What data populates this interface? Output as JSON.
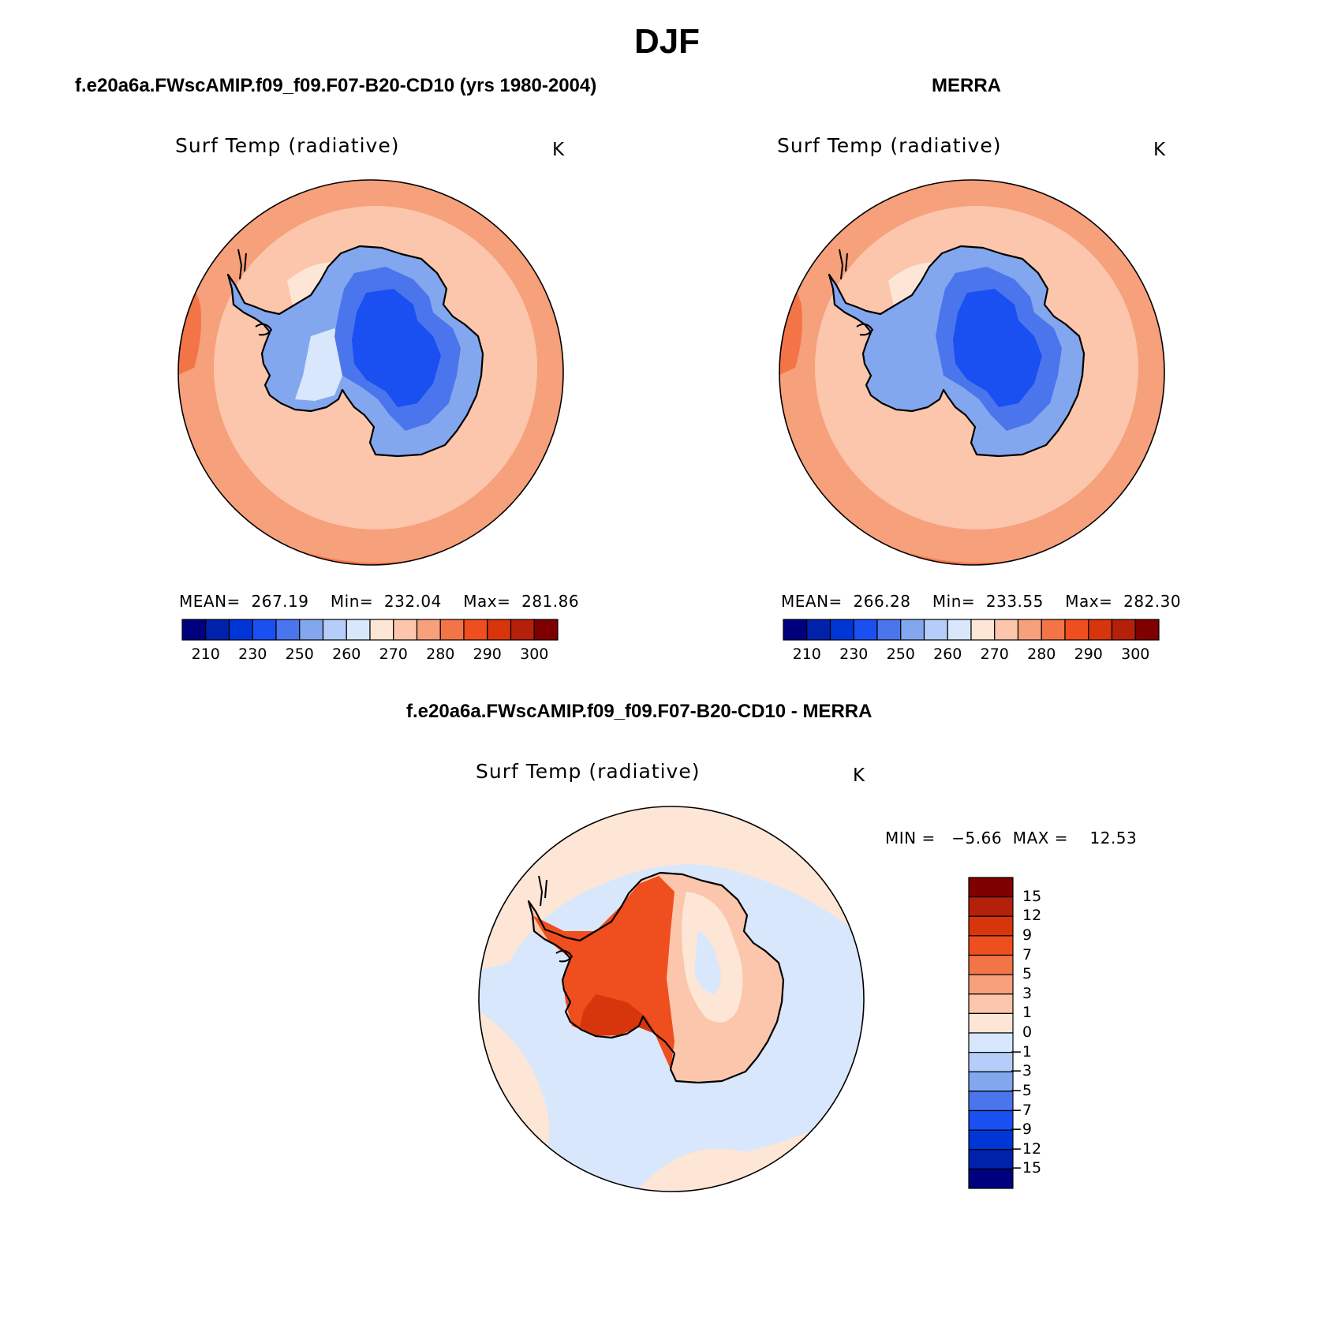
{
  "title": "DJF",
  "panels": [
    {
      "case_title": "f.e20a6a.FWscAMIP.f09_f09.F07-B20-CD10 (yrs 1980-2004)",
      "variable": "Surf Temp (radiative)",
      "units": "K",
      "stats": "MEAN=  267.19    Min=  232.04    Max=  281.86"
    },
    {
      "case_title": "MERRA",
      "variable": "Surf Temp (radiative)",
      "units": "K",
      "stats": "MEAN=  266.28    Min=  233.55    Max=  282.30"
    }
  ],
  "diff_panel": {
    "case_title": "f.e20a6a.FWscAMIP.f09_f09.F07-B20-CD10 - MERRA",
    "variable": "Surf Temp (radiative)",
    "units": "K",
    "stats": "MIN =   −5.66  MAX =    12.53"
  },
  "abs_colorbar": {
    "colors": [
      "#00007f",
      "#0022aa",
      "#0036d6",
      "#1a4ff2",
      "#4a75ec",
      "#83a7ef",
      "#b5cdf8",
      "#d8e7fb",
      "#fde6d6",
      "#fbc6ab",
      "#f6a07c",
      "#f27447",
      "#ef4e1e",
      "#d7350b",
      "#b5200b",
      "#7f0000"
    ],
    "labels": [
      "210",
      "230",
      "250",
      "260",
      "270",
      "280",
      "290",
      "300"
    ]
  },
  "diff_colorbar": {
    "colors": [
      "#7f0000",
      "#b5200b",
      "#d7350b",
      "#ef4e1e",
      "#f27447",
      "#f6a07c",
      "#fbc6ab",
      "#fde6d6",
      "#d8e7fb",
      "#b5cdf8",
      "#83a7ef",
      "#4a75ec",
      "#1a4ff2",
      "#0036d6",
      "#0022aa",
      "#00007f"
    ],
    "labels": [
      "15",
      "12",
      "9",
      "7",
      "5",
      "3",
      "1",
      "0",
      "−1",
      "−3",
      "−5",
      "−7",
      "−9",
      "−12",
      "−15"
    ]
  },
  "map_colors": {
    "ocean_warm": "#fbc6ab",
    "ocean_mid": "#f6a07c",
    "ocean_edge": "#f27447",
    "ice_cold": "#1a4ff2",
    "ice_mid": "#4a75ec",
    "ice_light": "#83a7ef",
    "shelf": "#d8e7fb",
    "diff_pos_light": "#fde6d6",
    "diff_neg_light": "#d8e7fb",
    "diff_hot": "#ef4e1e",
    "diff_hotter": "#d7350b"
  }
}
